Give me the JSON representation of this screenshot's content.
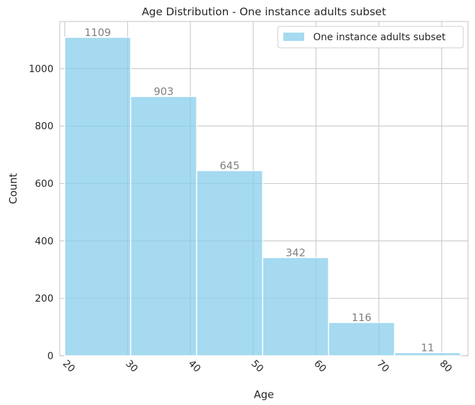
{
  "chart_data": {
    "type": "bar",
    "title": "Age Distribution - One instance adults subset",
    "xlabel": "Age",
    "ylabel": "Count",
    "bin_edges": [
      20,
      30.5,
      41,
      51.5,
      62,
      72.5,
      83
    ],
    "values": [
      1109,
      903,
      645,
      342,
      116,
      11
    ],
    "x_ticks": [
      20,
      30,
      40,
      50,
      60,
      70,
      80
    ],
    "y_ticks": [
      0,
      200,
      400,
      600,
      800,
      1000
    ],
    "xlim": [
      19.2,
      84.2
    ],
    "ylim": [
      0,
      1164
    ],
    "grid": true,
    "legend_position": "top-right",
    "series": [
      {
        "name": "One instance adults subset",
        "color": "#87ceeb"
      }
    ],
    "bar_color": "#87ceeb",
    "data_label_color": "#808080"
  }
}
